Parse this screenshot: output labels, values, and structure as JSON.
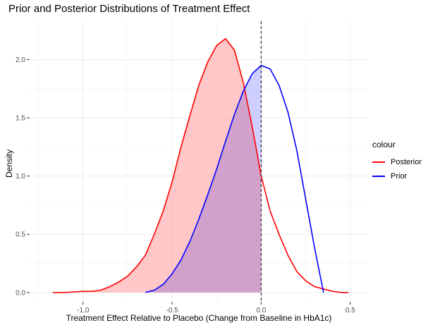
{
  "chart_data": {
    "type": "area",
    "title": "Prior and Posterior Distributions of Treatment Effect",
    "xlabel": "Treatment Effect Relative to Placebo (Change from Baseline in HbA1c)",
    "ylabel": "Density",
    "xlim": [
      -1.3,
      0.6
    ],
    "ylim": [
      -0.08,
      2.33
    ],
    "xticks": [
      -1.0,
      -0.5,
      0.0,
      0.5
    ],
    "xtick_labels": [
      "-1.0",
      "-0.5",
      "0.0",
      "0.5"
    ],
    "yticks": [
      0.0,
      0.5,
      1.0,
      1.5,
      2.0
    ],
    "ytick_labels": [
      "0.0",
      "0.5",
      "1.0",
      "1.5",
      "2.0"
    ],
    "grid": true,
    "vline": {
      "x": 0.0,
      "style": "dashed",
      "color": "#333333"
    },
    "legend": {
      "title": "colour",
      "position": "right"
    },
    "series": [
      {
        "name": "Posterior",
        "color": "#ff0000",
        "fill": "#ff9999",
        "x": [
          -1.17,
          -1.1,
          -1.0,
          -0.95,
          -0.9,
          -0.85,
          -0.8,
          -0.75,
          -0.7,
          -0.65,
          -0.6,
          -0.55,
          -0.5,
          -0.45,
          -0.4,
          -0.35,
          -0.3,
          -0.25,
          -0.2,
          -0.15,
          -0.1,
          -0.05,
          0.0,
          0.05,
          0.1,
          0.15,
          0.2,
          0.25,
          0.3,
          0.35,
          0.4,
          0.45,
          0.49
        ],
        "y": [
          0.0,
          0.0,
          0.01,
          0.01,
          0.02,
          0.05,
          0.09,
          0.14,
          0.22,
          0.32,
          0.5,
          0.7,
          0.95,
          1.25,
          1.52,
          1.78,
          1.98,
          2.12,
          2.18,
          2.08,
          1.8,
          1.42,
          1.0,
          0.7,
          0.5,
          0.32,
          0.18,
          0.1,
          0.05,
          0.03,
          0.01,
          0.0,
          0.0
        ]
      },
      {
        "name": "Prior",
        "color": "#0000ff",
        "fill": "#b3b3ff",
        "x": [
          -0.65,
          -0.6,
          -0.55,
          -0.5,
          -0.45,
          -0.4,
          -0.35,
          -0.3,
          -0.25,
          -0.2,
          -0.15,
          -0.1,
          -0.05,
          0.0,
          0.05,
          0.1,
          0.15,
          0.2,
          0.25,
          0.3,
          0.35
        ],
        "y": [
          0.0,
          0.02,
          0.07,
          0.16,
          0.28,
          0.44,
          0.63,
          0.84,
          1.06,
          1.3,
          1.53,
          1.73,
          1.88,
          1.95,
          1.92,
          1.78,
          1.55,
          1.22,
          0.8,
          0.38,
          0.0
        ]
      }
    ],
    "overlap_fill": "#d1a1cc"
  }
}
